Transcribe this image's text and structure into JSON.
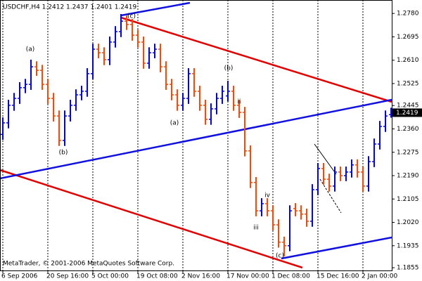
{
  "chart_data": {
    "type": "ohlc",
    "title": "USDCHF,H4  1.2412 1.2437 1.2401 1.2419",
    "footer": "MetaTrader, © 2001-2006 MetaQuotes Software Corp.",
    "up_color": "#0000ff",
    "down_color": "#ff4500",
    "current_price": 1.2419,
    "grid": true,
    "categories": [
      "6 Sep 2006",
      null,
      null,
      null,
      null,
      null,
      null,
      null,
      "20 Sep 16:00",
      null,
      null,
      null,
      null,
      null,
      null,
      null,
      "5 Oct 00:00",
      null,
      null,
      null,
      null,
      null,
      null,
      null,
      "19 Oct 08:00",
      null,
      null,
      null,
      null,
      null,
      null,
      null,
      "2 Nov 16:00",
      null,
      null,
      null,
      null,
      null,
      null,
      null,
      "17 Nov 00:00",
      null,
      null,
      null,
      null,
      null,
      null,
      null,
      "1 Dec 08:00",
      null,
      null,
      null,
      null,
      null,
      null,
      null,
      "15 Dec 16:00",
      null,
      null,
      null,
      null,
      null,
      null,
      null,
      "2 Jan 00:00",
      null,
      null,
      null,
      null,
      null
    ],
    "open": [
      1.234,
      1.2382,
      1.2446,
      1.2471,
      1.251,
      1.2522,
      1.2586,
      1.2573,
      1.2522,
      1.2471,
      1.2407,
      1.2318,
      1.2407,
      1.2446,
      1.2484,
      1.2497,
      1.2561,
      1.265,
      1.2637,
      1.2612,
      1.2676,
      1.2714,
      1.2752,
      1.274,
      1.2701,
      1.2676,
      1.2599,
      1.2637,
      1.265,
      1.2586,
      1.2522,
      1.2484,
      1.2446,
      1.2471,
      1.2561,
      1.2497,
      1.2446,
      1.2395,
      1.2433,
      1.2471,
      1.248,
      1.2497,
      1.2446,
      1.242,
      1.228,
      1.2165,
      1.2062,
      1.2088,
      1.2062,
      1.2011,
      1.1948,
      1.1935,
      1.207,
      1.2062,
      1.205,
      1.2024,
      1.2139,
      1.2216,
      1.2177,
      1.2152,
      1.2203,
      1.219,
      1.2203,
      1.2229,
      1.2203,
      1.2152,
      1.2241,
      1.2305,
      1.2369,
      1.2412
    ],
    "high": [
      1.2402,
      1.2466,
      1.2491,
      1.253,
      1.2542,
      1.2612,
      1.2606,
      1.2593,
      1.2542,
      1.2491,
      1.2427,
      1.2427,
      1.2466,
      1.2504,
      1.2517,
      1.2581,
      1.267,
      1.267,
      1.2657,
      1.2696,
      1.2734,
      1.2778,
      1.2772,
      1.276,
      1.2721,
      1.2696,
      1.2657,
      1.267,
      1.267,
      1.2606,
      1.2542,
      1.2504,
      1.2491,
      1.2581,
      1.2581,
      1.2517,
      1.2466,
      1.2453,
      1.2491,
      1.2517,
      1.2535,
      1.2517,
      1.2466,
      1.244,
      1.23,
      1.2185,
      1.2108,
      1.2108,
      1.2082,
      1.2031,
      1.1968,
      1.2082,
      1.209,
      1.2082,
      1.207,
      1.2159,
      1.2236,
      1.2236,
      1.2197,
      1.2223,
      1.2223,
      1.2223,
      1.2249,
      1.2249,
      1.2223,
      1.2261,
      1.2325,
      1.2389,
      1.2427,
      1.2437
    ],
    "low": [
      1.232,
      1.2362,
      1.2426,
      1.2451,
      1.249,
      1.2502,
      1.2553,
      1.2502,
      1.2451,
      1.2387,
      1.2298,
      1.2298,
      1.2387,
      1.2426,
      1.2464,
      1.2477,
      1.2541,
      1.2617,
      1.2592,
      1.2592,
      1.2656,
      1.2694,
      1.272,
      1.2681,
      1.2656,
      1.2579,
      1.2579,
      1.2617,
      1.2566,
      1.2502,
      1.2464,
      1.2426,
      1.2426,
      1.2451,
      1.2477,
      1.2426,
      1.2375,
      1.2375,
      1.2413,
      1.2451,
      1.246,
      1.2426,
      1.24,
      1.226,
      1.2145,
      1.2042,
      1.2042,
      1.2042,
      1.1991,
      1.1928,
      1.1896,
      1.1915,
      1.2042,
      1.203,
      1.2004,
      1.2004,
      1.2119,
      1.2157,
      1.2132,
      1.2132,
      1.217,
      1.217,
      1.2183,
      1.2183,
      1.2132,
      1.2132,
      1.2221,
      1.2285,
      1.2349,
      1.2401
    ],
    "close": [
      1.2382,
      1.2446,
      1.2471,
      1.251,
      1.2522,
      1.2586,
      1.2573,
      1.2522,
      1.2471,
      1.2407,
      1.2318,
      1.2407,
      1.2446,
      1.2484,
      1.2497,
      1.2561,
      1.265,
      1.2637,
      1.2612,
      1.2676,
      1.2714,
      1.2752,
      1.274,
      1.2701,
      1.2676,
      1.2599,
      1.2637,
      1.265,
      1.2586,
      1.2522,
      1.2484,
      1.2446,
      1.2471,
      1.2561,
      1.2497,
      1.2446,
      1.2395,
      1.2433,
      1.2471,
      1.2497,
      1.2497,
      1.2446,
      1.242,
      1.228,
      1.2165,
      1.2062,
      1.2088,
      1.2062,
      1.2011,
      1.1948,
      1.1935,
      1.2062,
      1.2062,
      1.205,
      1.2024,
      1.2139,
      1.2216,
      1.2177,
      1.2152,
      1.2203,
      1.219,
      1.2203,
      1.2229,
      1.2203,
      1.2152,
      1.2241,
      1.2305,
      1.2369,
      1.2407,
      1.2419
    ],
    "ylim": [
      1.1845,
      1.2829
    ],
    "yticks": [
      {
        "value": 1.278,
        "label": "1.2780"
      },
      1.2695,
      {
        "value": 1.261,
        "label": "1.2610"
      },
      1.2525,
      1.2445,
      {
        "value": 1.236,
        "label": "1.2360"
      },
      1.2275,
      {
        "value": 1.219,
        "label": "1.2190"
      },
      1.2105,
      {
        "value": 1.202,
        "label": "1.2020"
      },
      1.1935,
      1.1855
    ],
    "annotations": [
      "(a)",
      "(b)",
      "(c)",
      "(a)",
      "(b)",
      "ii",
      "iv",
      "iii",
      "(c)"
    ]
  }
}
